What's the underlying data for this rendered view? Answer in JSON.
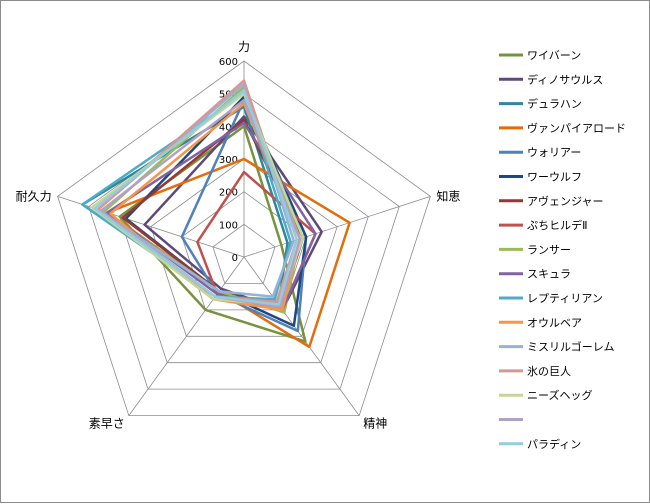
{
  "chart_data": {
    "type": "radar",
    "title": "",
    "axes": [
      "力",
      "知恵",
      "精神",
      "素早さ",
      "耐久力"
    ],
    "ticks": [
      0,
      100,
      200,
      300,
      400,
      500,
      600
    ],
    "rlim": [
      0,
      600
    ],
    "grid": true,
    "legend_position": "right",
    "series": [
      {
        "name": "ワイバーン",
        "color": "#77933c",
        "values": [
          400,
          120,
          320,
          200,
          400
        ]
      },
      {
        "name": "ディノサウルス",
        "color": "#5f497a",
        "values": [
          430,
          250,
          200,
          120,
          320
        ]
      },
      {
        "name": "デュラハン",
        "color": "#31859c",
        "values": [
          460,
          140,
          180,
          150,
          520
        ]
      },
      {
        "name": "ヴァンパイアロード",
        "color": "#e46c0a",
        "values": [
          300,
          340,
          340,
          130,
          440
        ]
      },
      {
        "name": "ウォリアー",
        "color": "#4f81bd",
        "values": [
          480,
          200,
          280,
          140,
          200
        ]
      },
      {
        "name": "ワーウルフ",
        "color": "#1f497d",
        "values": [
          490,
          200,
          260,
          130,
          380
        ]
      },
      {
        "name": "アヴェンジャー",
        "color": "#953735",
        "values": [
          420,
          190,
          190,
          130,
          390
        ]
      },
      {
        "name": "ぷちヒルデⅡ",
        "color": "#c0504d",
        "values": [
          260,
          230,
          200,
          140,
          150
        ]
      },
      {
        "name": "ランサー",
        "color": "#9bbb59",
        "values": [
          520,
          180,
          210,
          130,
          450
        ]
      },
      {
        "name": "スキュラ",
        "color": "#8064a2",
        "values": [
          410,
          230,
          200,
          140,
          440
        ]
      },
      {
        "name": "レプティリアン",
        "color": "#4bacc6",
        "values": [
          500,
          150,
          160,
          150,
          520
        ]
      },
      {
        "name": "オウルベア",
        "color": "#f79646",
        "values": [
          470,
          180,
          200,
          160,
          430
        ]
      },
      {
        "name": "ミスリルゴーレム",
        "color": "#95b3d7",
        "values": [
          530,
          160,
          150,
          130,
          470
        ]
      },
      {
        "name": "氷の巨人",
        "color": "#d99694",
        "values": [
          540,
          170,
          170,
          150,
          470
        ]
      },
      {
        "name": "ニーズヘッグ",
        "color": "#c3d69b",
        "values": [
          500,
          190,
          180,
          160,
          490
        ]
      },
      {
        "name": "",
        "color": "#b2a1c7",
        "values": [
          480,
          180,
          190,
          150,
          460
        ]
      },
      {
        "name": "パラディン",
        "color": "#93cddd",
        "values": [
          510,
          170,
          180,
          150,
          480
        ]
      }
    ]
  }
}
